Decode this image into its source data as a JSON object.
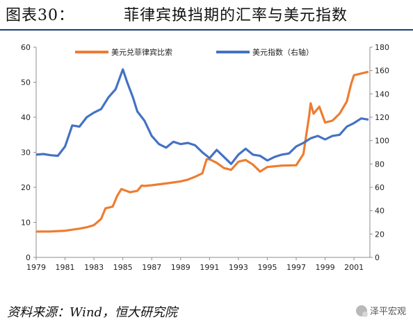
{
  "header": {
    "figure_no": "图表30：",
    "title": "菲律宾换挡期的汇率与美元指数"
  },
  "footer": {
    "source": "资料来源：Wind，恒大研究院",
    "watermark": "泽平宏观"
  },
  "chart_data": {
    "type": "line",
    "legend_position": "top",
    "grid": false,
    "x_ticks": [
      "1979",
      "1981",
      "1983",
      "1985",
      "1987",
      "1989",
      "1991",
      "1993",
      "1995",
      "1997",
      "1999",
      "2001"
    ],
    "xlim": [
      1979,
      2002.1
    ],
    "y_left": {
      "lim": [
        0,
        60
      ],
      "ticks": [
        "0",
        "10",
        "20",
        "30",
        "40",
        "50",
        "60"
      ]
    },
    "y_right": {
      "lim": [
        0,
        180
      ],
      "ticks": [
        "0",
        "20",
        "40",
        "60",
        "80",
        "100",
        "120",
        "140",
        "160",
        "180"
      ]
    },
    "colors": {
      "php": "#ed7d31",
      "dxy": "#4472c4"
    },
    "series": [
      {
        "name": "美元兑菲律宾比索",
        "axis": "left",
        "points": [
          [
            1979.0,
            7.37
          ],
          [
            1980.0,
            7.4
          ],
          [
            1981.0,
            7.6
          ],
          [
            1981.5,
            7.9
          ],
          [
            1982.0,
            8.2
          ],
          [
            1982.5,
            8.6
          ],
          [
            1983.0,
            9.2
          ],
          [
            1983.5,
            11.0
          ],
          [
            1983.8,
            14.0
          ],
          [
            1984.3,
            14.5
          ],
          [
            1984.6,
            17.5
          ],
          [
            1984.9,
            19.5
          ],
          [
            1985.5,
            18.6
          ],
          [
            1986.0,
            19.0
          ],
          [
            1986.3,
            20.5
          ],
          [
            1986.5,
            20.4
          ],
          [
            1987.0,
            20.6
          ],
          [
            1988.0,
            21.1
          ],
          [
            1989.0,
            21.7
          ],
          [
            1989.5,
            22.2
          ],
          [
            1990.0,
            23.0
          ],
          [
            1990.5,
            24.0
          ],
          [
            1990.8,
            28.0
          ],
          [
            1991.0,
            28.0
          ],
          [
            1991.5,
            27.0
          ],
          [
            1992.0,
            25.5
          ],
          [
            1992.5,
            25.0
          ],
          [
            1993.0,
            27.3
          ],
          [
            1993.5,
            27.8
          ],
          [
            1994.0,
            26.5
          ],
          [
            1994.5,
            24.5
          ],
          [
            1995.0,
            25.8
          ],
          [
            1995.5,
            26.0
          ],
          [
            1996.0,
            26.2
          ],
          [
            1997.0,
            26.3
          ],
          [
            1997.5,
            29.5
          ],
          [
            1997.9,
            40.5
          ],
          [
            1998.0,
            44.0
          ],
          [
            1998.2,
            41.0
          ],
          [
            1998.6,
            43.0
          ],
          [
            1999.0,
            38.5
          ],
          [
            1999.5,
            39.0
          ],
          [
            2000.0,
            41.0
          ],
          [
            2000.5,
            44.5
          ],
          [
            2000.8,
            49.5
          ],
          [
            2001.0,
            52.0
          ],
          [
            2001.5,
            52.5
          ],
          [
            2002.0,
            53.0
          ]
        ]
      },
      {
        "name": "美元指数（右轴）",
        "axis": "right",
        "points": [
          [
            1979.0,
            88.0
          ],
          [
            1979.5,
            88.5
          ],
          [
            1980.0,
            87.5
          ],
          [
            1980.5,
            87.0
          ],
          [
            1981.0,
            95.0
          ],
          [
            1981.5,
            113.0
          ],
          [
            1982.0,
            112.0
          ],
          [
            1982.5,
            120.0
          ],
          [
            1983.0,
            124.0
          ],
          [
            1983.5,
            127.0
          ],
          [
            1984.0,
            137.0
          ],
          [
            1984.5,
            144.0
          ],
          [
            1985.0,
            161.0
          ],
          [
            1985.3,
            150.0
          ],
          [
            1985.7,
            137.0
          ],
          [
            1986.0,
            125.0
          ],
          [
            1986.5,
            117.0
          ],
          [
            1987.0,
            104.0
          ],
          [
            1987.5,
            97.0
          ],
          [
            1988.0,
            94.0
          ],
          [
            1988.5,
            99.0
          ],
          [
            1989.0,
            97.0
          ],
          [
            1989.5,
            98.0
          ],
          [
            1990.0,
            96.0
          ],
          [
            1990.5,
            90.0
          ],
          [
            1991.0,
            85.0
          ],
          [
            1991.5,
            92.0
          ],
          [
            1992.0,
            86.0
          ],
          [
            1992.5,
            80.0
          ],
          [
            1993.0,
            88.0
          ],
          [
            1993.5,
            93.0
          ],
          [
            1994.0,
            88.0
          ],
          [
            1994.5,
            87.0
          ],
          [
            1995.0,
            83.0
          ],
          [
            1995.5,
            86.0
          ],
          [
            1996.0,
            88.0
          ],
          [
            1996.5,
            89.0
          ],
          [
            1997.0,
            95.0
          ],
          [
            1997.5,
            98.0
          ],
          [
            1998.0,
            102.0
          ],
          [
            1998.5,
            104.0
          ],
          [
            1999.0,
            101.0
          ],
          [
            1999.5,
            104.0
          ],
          [
            2000.0,
            105.0
          ],
          [
            2000.5,
            112.0
          ],
          [
            2001.0,
            115.0
          ],
          [
            2001.5,
            119.0
          ],
          [
            2002.0,
            118.0
          ]
        ]
      }
    ]
  }
}
